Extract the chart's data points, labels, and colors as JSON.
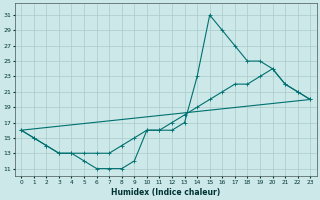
{
  "xlabel": "Humidex (Indice chaleur)",
  "bg_color": "#cde8e8",
  "grid_color": "#aacccc",
  "line_color": "#007070",
  "series1_x": [
    0,
    1,
    2,
    3,
    4,
    5,
    6,
    7,
    8,
    9,
    10,
    11,
    12,
    13,
    14,
    15,
    16,
    17,
    18,
    19,
    20,
    21,
    22,
    23
  ],
  "series1_y": [
    16,
    15,
    14,
    13,
    13,
    12,
    11,
    11,
    11,
    12,
    16,
    16,
    16,
    17,
    23,
    31,
    29,
    27,
    25,
    25,
    24,
    22,
    21,
    20
  ],
  "series2_x": [
    0,
    1,
    2,
    3,
    4,
    5,
    6,
    7,
    8,
    9,
    10,
    11,
    12,
    13,
    14,
    15,
    16,
    17,
    18,
    19,
    20,
    21,
    22,
    23
  ],
  "series2_y": [
    16,
    15,
    14,
    13,
    13,
    13,
    13,
    13,
    14,
    15,
    16,
    16,
    17,
    18,
    19,
    20,
    21,
    22,
    22,
    23,
    24,
    22,
    21,
    20
  ],
  "series3_x": [
    0,
    23
  ],
  "series3_y": [
    16,
    20
  ],
  "xlim": [
    -0.5,
    23.5
  ],
  "ylim": [
    10,
    32.5
  ],
  "yticks": [
    11,
    13,
    15,
    17,
    19,
    21,
    23,
    25,
    27,
    29,
    31
  ],
  "xticks": [
    0,
    1,
    2,
    3,
    4,
    5,
    6,
    7,
    8,
    9,
    10,
    11,
    12,
    13,
    14,
    15,
    16,
    17,
    18,
    19,
    20,
    21,
    22,
    23
  ]
}
